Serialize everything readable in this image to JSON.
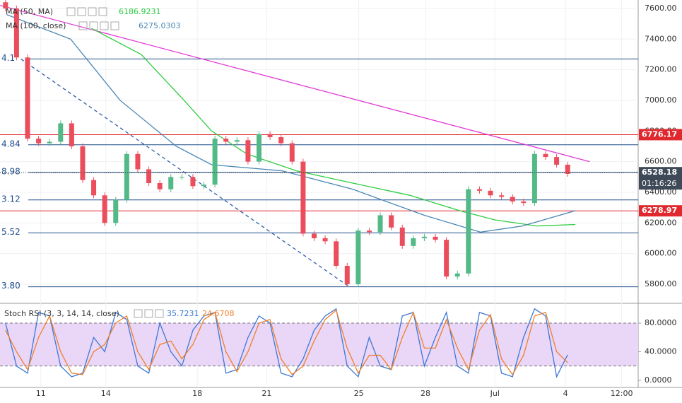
{
  "chart_data": {
    "type": "candlestick",
    "open": 7640,
    "closes": [
      7600,
      7280,
      6750,
      6720,
      6730,
      6850,
      6700,
      6480,
      6380,
      6200,
      6350,
      6650,
      6550,
      6460,
      6420,
      6500,
      6500,
      6440,
      6450,
      6750,
      6730,
      6740,
      6600,
      6780,
      6760,
      6720,
      6600,
      6130,
      6100,
      6080,
      5920,
      5800,
      6150,
      6140,
      6250,
      6170,
      6050,
      6100,
      6110,
      6090,
      5850,
      5870,
      6420,
      6410,
      6380,
      6370,
      6340,
      6330,
      6650,
      6630,
      6580,
      6520
    ],
    "up_color": "#53b987",
    "down_color": "#eb4d5c",
    "xlim": [
      -0.5,
      57.4
    ],
    "xticks": [
      {
        "value": 3.2,
        "label": "11"
      },
      {
        "value": 9.1,
        "label": "14"
      },
      {
        "value": 17.4,
        "label": "18"
      },
      {
        "value": 23.7,
        "label": "21"
      },
      {
        "value": 32.05,
        "label": "25"
      },
      {
        "value": 38.1,
        "label": "28"
      },
      {
        "value": 44.4,
        "label": "Jul"
      },
      {
        "value": 50.8,
        "label": "4"
      },
      {
        "value": 55.9,
        "label": "12:00"
      }
    ],
    "ylim": [
      5680,
      7655
    ],
    "yticks": [
      {
        "value": 5800,
        "label": "5800.00"
      },
      {
        "value": 6000,
        "label": "6000.00"
      },
      {
        "value": 6200,
        "label": "6200.00"
      },
      {
        "value": 6400,
        "label": "6400.00"
      },
      {
        "value": 6600,
        "label": "6600.00"
      },
      {
        "value": 6800,
        "label": "6800.00"
      },
      {
        "value": 7000,
        "label": "7000.00"
      },
      {
        "value": 7200,
        "label": "7200.00"
      },
      {
        "value": 7400,
        "label": "7400.00"
      },
      {
        "value": 7600,
        "label": "7600.00"
      }
    ],
    "grid": true,
    "moving_averages": [
      {
        "name": "MA (50, MA)",
        "value": 6186.9231,
        "color": "#2ecc40",
        "x": [
          7.8,
          12.3,
          16.2,
          18.7,
          21.9,
          26.4,
          31.5,
          36.7,
          41.2,
          44.4,
          48.2,
          51.7
        ],
        "values": [
          7470,
          7300,
          7000,
          6800,
          6650,
          6540,
          6460,
          6380,
          6280,
          6220,
          6180,
          6190
        ]
      },
      {
        "name": "MA (100, close)",
        "value": 6275.0303,
        "color": "#4a86b4",
        "x": [
          0.1,
          5.9,
          10.4,
          15.5,
          18.7,
          25.1,
          31.5,
          38,
          43.1,
          46.9,
          51.7
        ],
        "values": [
          7560,
          7400,
          7000,
          6700,
          6580,
          6540,
          6420,
          6250,
          6140,
          6180,
          6280
        ]
      }
    ],
    "trendlines": [
      {
        "color": "#e33ad6",
        "x": [
          -0.5,
          53
        ],
        "values": [
          7620,
          6600
        ],
        "dashed": false
      },
      {
        "color": "#2f5fa8",
        "x": [
          1.4,
          31.2
        ],
        "values": [
          7270,
          5783
        ],
        "dashed": true
      }
    ],
    "fib_levels": {
      "color": "#1f4e8c",
      "values": [
        7270,
        6710,
        6530,
        6350,
        6135,
        5783
      ],
      "labels": [
        "4.1",
        "4.84",
        "8.98",
        "3.12",
        "5.52",
        "3.80"
      ]
    },
    "red_levels": {
      "color": "#e0292f",
      "values": [
        6776.17,
        6278.97
      ]
    },
    "last_price": 6528.18,
    "countdown": "01:16:26",
    "stoch": {
      "title": "Stoch RSI (3, 3, 14, 14, close)",
      "ylim": [
        -10,
        106.7
      ],
      "yticks": [
        {
          "value": 80,
          "label": "80.0000"
        },
        {
          "value": 40,
          "label": "40.0000"
        },
        {
          "value": 0,
          "label": "0.0000"
        }
      ],
      "band": [
        20,
        80
      ],
      "series": [
        {
          "name": "K",
          "color": "#3c78d8",
          "last": 35.7231,
          "values": [
            80,
            20,
            10,
            95,
            90,
            20,
            5,
            10,
            60,
            40,
            95,
            85,
            20,
            10,
            80,
            40,
            20,
            70,
            90,
            95,
            10,
            15,
            60,
            90,
            80,
            10,
            5,
            30,
            70,
            90,
            100,
            20,
            5,
            60,
            20,
            15,
            90,
            95,
            20,
            60,
            95,
            20,
            10,
            95,
            90,
            10,
            5,
            60,
            100,
            90,
            5,
            35.72
          ]
        },
        {
          "name": "D",
          "color": "#f07f2a",
          "last": 24.6708,
          "values": [
            70,
            40,
            15,
            60,
            90,
            40,
            10,
            8,
            40,
            50,
            80,
            90,
            40,
            15,
            50,
            55,
            30,
            50,
            85,
            95,
            40,
            12,
            40,
            80,
            85,
            30,
            8,
            20,
            55,
            85,
            98,
            45,
            10,
            35,
            35,
            15,
            60,
            95,
            45,
            45,
            85,
            45,
            15,
            70,
            92,
            30,
            8,
            35,
            90,
            95,
            40,
            24.67
          ]
        }
      ]
    }
  }
}
